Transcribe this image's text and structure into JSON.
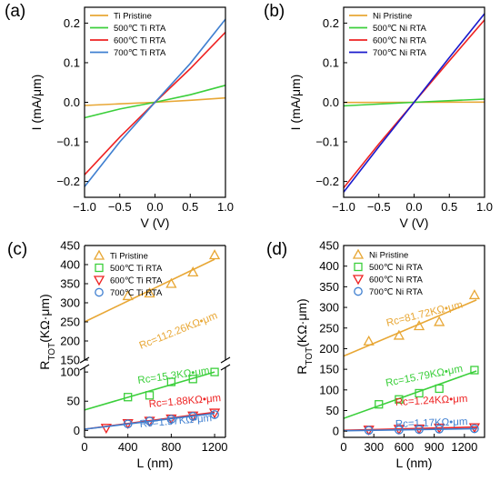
{
  "chart_data": [
    {
      "panel": "(a)",
      "type": "line",
      "xlabel": "V (V)",
      "ylabel": "I (mA/μm)",
      "xlim": [
        -1.0,
        1.0
      ],
      "ylim": [
        -0.24,
        0.24
      ],
      "xticks": [
        -1.0,
        -0.5,
        0.0,
        0.5,
        1.0
      ],
      "xtick_labels": [
        "−1.0",
        "−0.5",
        "0.0",
        "0.5",
        "1.0"
      ],
      "yticks": [
        -0.2,
        -0.1,
        0.0,
        0.1,
        0.2
      ],
      "ytick_labels": [
        "−0.2",
        "−0.1",
        "0.0",
        "0.1",
        "0.2"
      ],
      "legend_position": "top-left",
      "series": [
        {
          "name": "Ti Pristine",
          "color": "#E8A735",
          "x": [
            -1.0,
            -0.5,
            0.0,
            0.5,
            1.0
          ],
          "y": [
            -0.008,
            -0.004,
            0.0,
            0.005,
            0.011
          ]
        },
        {
          "name": "500℃ Ti RTA",
          "color": "#3BCF3B",
          "x": [
            -1.0,
            -0.5,
            0.0,
            0.5,
            1.0
          ],
          "y": [
            -0.039,
            -0.017,
            0.0,
            0.019,
            0.043
          ]
        },
        {
          "name": "600℃ Ti RTA",
          "color": "#EE2222",
          "x": [
            -1.0,
            -0.5,
            0.0,
            0.5,
            1.0
          ],
          "y": [
            -0.183,
            -0.088,
            0.0,
            0.085,
            0.177
          ]
        },
        {
          "name": "700℃ Ti RTA",
          "color": "#3F7FD0",
          "x": [
            -1.0,
            -0.5,
            0.0,
            0.5,
            1.0
          ],
          "y": [
            -0.213,
            -0.1,
            0.0,
            0.098,
            0.21
          ]
        }
      ]
    },
    {
      "panel": "(b)",
      "type": "line",
      "xlabel": "V (V)",
      "ylabel": "I (mA/μm)",
      "xlim": [
        -1.0,
        1.0
      ],
      "ylim": [
        -0.24,
        0.24
      ],
      "xticks": [
        -1.0,
        -0.5,
        0.0,
        0.5,
        1.0
      ],
      "xtick_labels": [
        "−1.0",
        "−0.5",
        "0.0",
        "0.5",
        "1.0"
      ],
      "yticks": [
        -0.2,
        -0.1,
        0.0,
        0.1,
        0.2
      ],
      "ytick_labels": [
        "−0.2",
        "−0.1",
        "0.0",
        "0.1",
        "0.2"
      ],
      "legend_position": "top-left",
      "series": [
        {
          "name": "Ni Pristine",
          "color": "#E8A735",
          "x": [
            -1.0,
            0.0,
            1.0
          ],
          "y": [
            -0.0005,
            0.0,
            0.0005
          ]
        },
        {
          "name": "500℃ Ni RTA",
          "color": "#3BCF3B",
          "x": [
            -1.0,
            0.0,
            1.0
          ],
          "y": [
            -0.009,
            0.0,
            0.008
          ]
        },
        {
          "name": "600℃ Ni RTA",
          "color": "#EE2222",
          "x": [
            -1.0,
            -0.5,
            0.0,
            0.5,
            1.0
          ],
          "y": [
            -0.216,
            -0.105,
            0.0,
            0.105,
            0.208
          ]
        },
        {
          "name": "700℃ Ni RTA",
          "color": "#1A1ACC",
          "x": [
            -1.0,
            -0.5,
            0.0,
            0.5,
            1.0
          ],
          "y": [
            -0.227,
            -0.112,
            0.0,
            0.113,
            0.224
          ]
        }
      ]
    },
    {
      "panel": "(c)",
      "type": "scatter",
      "xlabel": "L (nm)",
      "ylabel_main": "R",
      "ylabel_sub": "TOT",
      "ylabel_unit": "(KΩ·μm)",
      "xlim": [
        0,
        1300
      ],
      "xticks": [
        0,
        400,
        800,
        1200
      ],
      "xtick_labels": [
        "0",
        "400",
        "800",
        "1200"
      ],
      "broken_y_axis": true,
      "ylim_lower": [
        -12,
        108
      ],
      "ylim_upper": [
        150,
        450
      ],
      "yticks_lower": [
        0,
        50,
        100
      ],
      "ytick_labels_lower": [
        "0",
        "50",
        "100"
      ],
      "yticks_upper": [
        150,
        200,
        250,
        300,
        350,
        400,
        450
      ],
      "ytick_labels_upper": [
        "150",
        "200",
        "250",
        "300",
        "350",
        "400",
        "450"
      ],
      "legend_position": "top-left",
      "series": [
        {
          "name": "Ti Pristine",
          "color": "#E8A735",
          "marker": "triangle-up",
          "x": [
            400,
            600,
            800,
            1000,
            1200
          ],
          "y": [
            318,
            325,
            350,
            380,
            425
          ],
          "fit": [
            [
              0,
              250
            ],
            [
              1200,
              414
            ]
          ],
          "annotation": "Rc=112.26KΩ•μm",
          "annotation_rotate": -22
        },
        {
          "name": "500℃ Ti RTA",
          "color": "#3BCF3B",
          "marker": "square",
          "x": [
            400,
            600,
            800,
            1000,
            1200
          ],
          "y": [
            57,
            60,
            83,
            88,
            100
          ],
          "fit": [
            [
              0,
              35
            ],
            [
              1200,
              100
            ]
          ],
          "annotation": "Rc=15.3KΩ•μm",
          "annotation_rotate": -8
        },
        {
          "name": "600℃ Ti RTA",
          "color": "#EE2222",
          "marker": "triangle-down",
          "x": [
            200,
            400,
            600,
            800,
            1000,
            1200
          ],
          "y": [
            4,
            12,
            16,
            20,
            25,
            30
          ],
          "fit": [
            [
              0,
              2
            ],
            [
              1200,
              31
            ]
          ],
          "annotation": "Rc=1.88KΩ•μm",
          "annotation_rotate": -5
        },
        {
          "name": "700℃ Ti RTA",
          "color": "#3F7FD0",
          "marker": "circle",
          "x": [
            400,
            600,
            800,
            1000,
            1200
          ],
          "y": [
            11,
            16,
            19,
            24,
            27
          ],
          "fit": [
            [
              0,
              2
            ],
            [
              1200,
              29
            ]
          ],
          "annotation": "Rc=1.57KΩ•μm",
          "annotation_rotate": -5
        }
      ]
    },
    {
      "panel": "(d)",
      "type": "scatter",
      "xlabel": "L (nm)",
      "ylabel_main": "R",
      "ylabel_sub": "TOT",
      "ylabel_unit": "(KΩ·μm)",
      "xlim": [
        0,
        1400
      ],
      "ylim": [
        -15,
        450
      ],
      "xticks": [
        0,
        300,
        600,
        900,
        1200
      ],
      "xtick_labels": [
        "0",
        "300",
        "600",
        "900",
        "1200"
      ],
      "yticks": [
        0,
        50,
        100,
        150,
        200,
        250,
        300,
        350,
        400,
        450
      ],
      "ytick_labels": [
        "0",
        "50",
        "100",
        "150",
        "200",
        "250",
        "300",
        "350",
        "400",
        "450"
      ],
      "legend_position": "top-left",
      "series": [
        {
          "name": "Ni Pristine",
          "color": "#E8A735",
          "marker": "triangle-up",
          "x": [
            250,
            550,
            750,
            950,
            1300
          ],
          "y": [
            218,
            232,
            255,
            265,
            330
          ],
          "fit": [
            [
              0,
              182
            ],
            [
              1320,
              318
            ]
          ],
          "annotation": "Rc=81.72KΩ•μm",
          "annotation_rotate": -14
        },
        {
          "name": "500℃ Ni RTA",
          "color": "#3BCF3B",
          "marker": "square",
          "x": [
            350,
            550,
            750,
            950,
            1300
          ],
          "y": [
            65,
            77,
            92,
            103,
            148
          ],
          "fit": [
            [
              0,
              31
            ],
            [
              1320,
              146
            ]
          ],
          "annotation": "Rc=15.79KΩ•μm",
          "annotation_rotate": -11
        },
        {
          "name": "600℃ Ni RTA",
          "color": "#EE2222",
          "marker": "triangle-down",
          "x": [
            250,
            550,
            750,
            950,
            1300
          ],
          "y": [
            3,
            5,
            6,
            8,
            9
          ],
          "fit": [
            [
              0,
              2
            ],
            [
              1320,
              10
            ]
          ],
          "annotation": "Rc=1.24KΩ•μm",
          "annotation_rotate": -3
        },
        {
          "name": "700℃ Ni RTA",
          "color": "#3F7FD0",
          "marker": "circle",
          "x": [
            250,
            550,
            750,
            950,
            1300
          ],
          "y": [
            2,
            3,
            4,
            5,
            6
          ],
          "fit": [
            [
              0,
              1
            ],
            [
              1320,
              6
            ]
          ],
          "annotation": "Rc=1.17KΩ•μm",
          "annotation_rotate": -2
        }
      ]
    }
  ]
}
